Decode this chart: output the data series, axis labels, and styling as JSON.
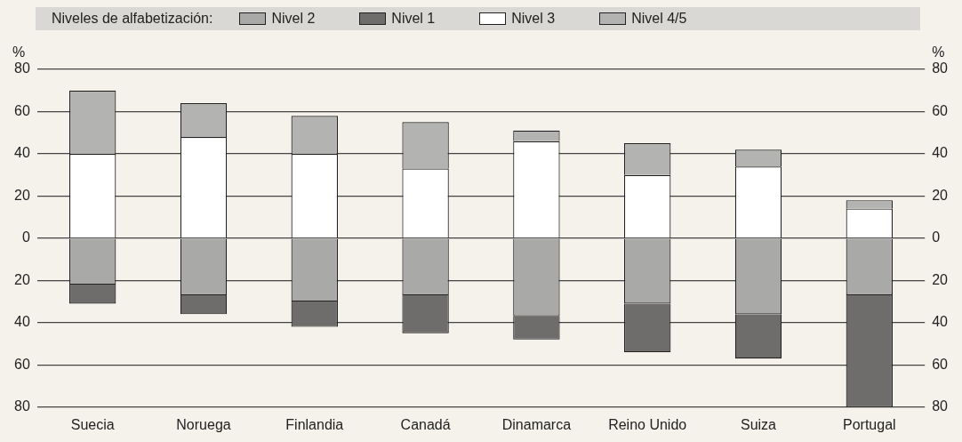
{
  "chart_data": {
    "type": "bar",
    "stacked": true,
    "legend_title": "Niveles de alfabetización:",
    "legend": "top left",
    "grid": "y",
    "ylabel": "%",
    "y2label": "%",
    "categories": [
      "Suecia",
      "Noruega",
      "Finlandia",
      "Canadá",
      "Dinamarca",
      "Reino Unido",
      "Suiza",
      "Portugal"
    ],
    "ylim": [
      -80,
      80
    ],
    "yticks": [
      {
        "value": -80,
        "label": "80"
      },
      {
        "value": -60,
        "label": "60"
      },
      {
        "value": -40,
        "label": "40"
      },
      {
        "value": -20,
        "label": "20"
      },
      0,
      20,
      40,
      60,
      80
    ],
    "y2lim": [
      -80,
      80
    ],
    "y2ticks": [
      {
        "value": -80,
        "label": "80"
      },
      {
        "value": -60,
        "label": "60"
      },
      {
        "value": -40,
        "label": "40"
      },
      {
        "value": -20,
        "label": "20"
      },
      0,
      20,
      40,
      60,
      80
    ],
    "series": [
      {
        "name": "Nivel 2",
        "color": "#a9a9a7",
        "values": [
          -22,
          -27,
          -30,
          -27,
          -37,
          -31,
          -36,
          -27
        ]
      },
      {
        "name": "Nivel 1",
        "color": "#6e6d6b",
        "values": [
          -9,
          -9,
          -12,
          -18,
          -11,
          -23,
          -21,
          -53
        ]
      },
      {
        "name": "Nivel 3",
        "color": "#ffffff",
        "values": [
          40,
          48,
          40,
          33,
          46,
          30,
          34,
          14
        ]
      },
      {
        "name": "Nivel 4/5",
        "color": "#b3b3b1",
        "values": [
          30,
          16,
          18,
          22,
          5,
          15,
          8,
          4
        ]
      }
    ]
  }
}
